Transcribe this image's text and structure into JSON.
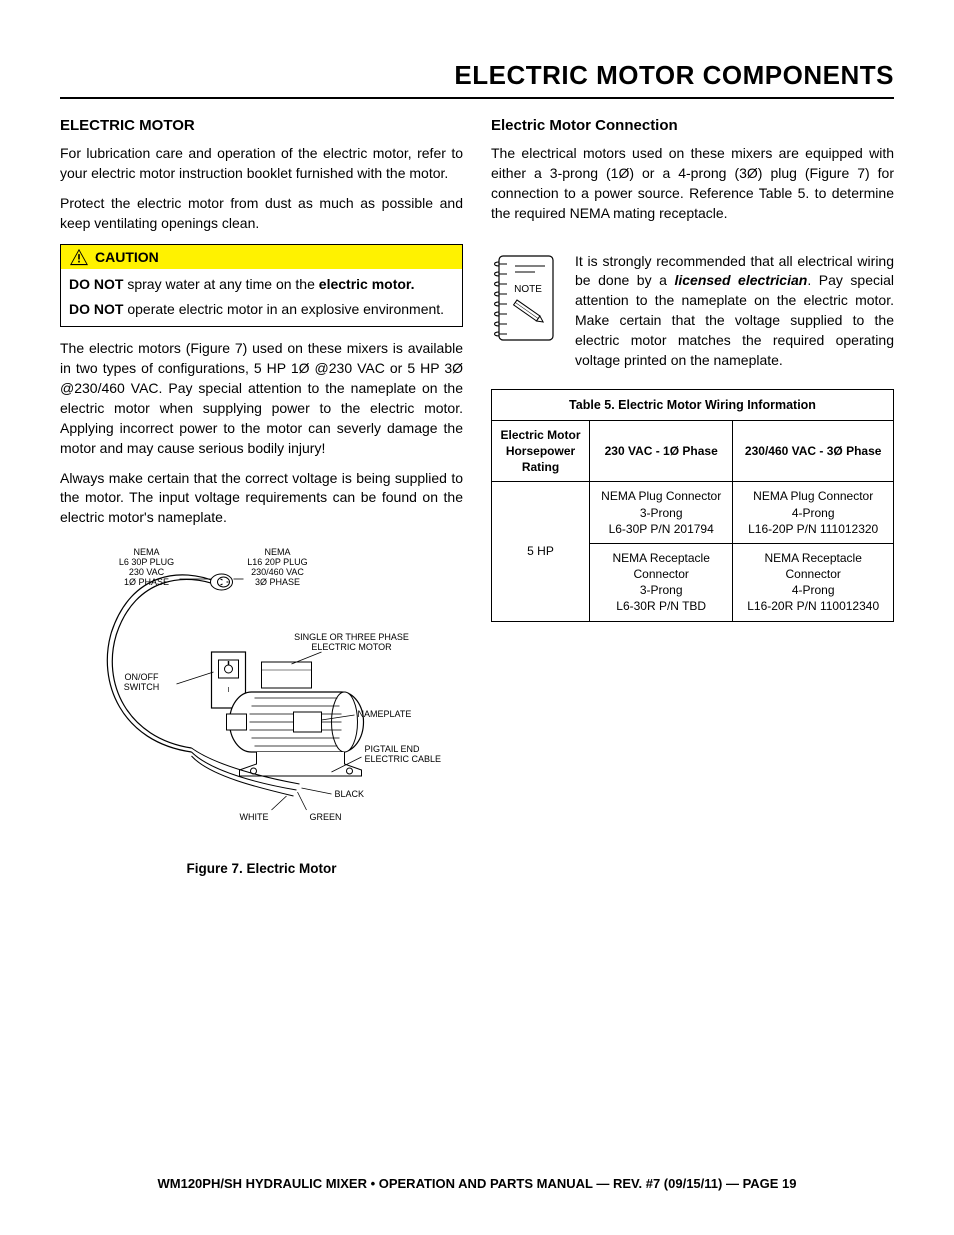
{
  "page": {
    "title": "ELECTRIC MOTOR COMPONENTS",
    "footer": "WM120PH/SH HYDRAULIC MIXER • OPERATION AND PARTS MANUAL — REV. #7 (09/15/11) — PAGE 19"
  },
  "left": {
    "heading": "ELECTRIC MOTOR",
    "p1": "For lubrication care and operation of the electric motor, refer to your electric motor instruction booklet furnished with the motor.",
    "p2": "Protect the electric motor from dust as much as possible and keep ventilating openings clean.",
    "caution": {
      "label": "CAUTION",
      "line1a": "DO NOT",
      "line1b": " spray water at any time on the ",
      "line1c": "electric motor.",
      "line2a": "DO NOT",
      "line2b": " operate electric motor in an explosive environment."
    },
    "p3": "The electric motors (Figure 7) used on these mixers is available in two types of configurations, 5 HP 1Ø @230 VAC or 5 HP 3Ø @230/460 VAC.  Pay special attention to the nameplate on the electric motor when supplying power to the electric motor. Applying incorrect power to the motor can severly damage the motor and may cause serious bodily injury!",
    "p4": "Always make certain that the correct voltage is being supplied to the motor. The input voltage requirements can be found on the electric motor's nameplate.",
    "figure": {
      "caption": "Figure 7.  Electric Motor",
      "labels": {
        "plug1a": "NEMA",
        "plug1b": "L6 30P PLUG",
        "plug1c": "230 VAC",
        "plug1d": "1Ø PHASE",
        "plug2a": "NEMA",
        "plug2b": "L16 20P PLUG",
        "plug2c": "230/460 VAC",
        "plug2d": "3Ø PHASE",
        "motor1": "SINGLE OR THREE PHASE",
        "motor2": "ELECTRIC MOTOR",
        "switch1": "ON/OFF",
        "switch2": "SWITCH",
        "nameplate": "NAMEPLATE",
        "pigtail1": "PIGTAIL END",
        "pigtail2": "ELECTRIC CABLE",
        "black": "BLACK",
        "white": "WHITE",
        "green": "GREEN"
      }
    }
  },
  "right": {
    "heading": "Electric Motor Connection",
    "p1": "The electrical motors used on these mixers are equipped with either a 3-prong (1Ø) or a 4-prong (3Ø) plug (Figure 7) for connection to a power source. Reference Table 5. to determine the required NEMA mating receptacle.",
    "note": {
      "label": "NOTE",
      "t1": "It is strongly recommended that all electrical wiring be done by a ",
      "t2": "licensed electrician",
      "t3": ". Pay special attention to the nameplate on the electric motor. Make certain that the voltage supplied to the electric motor matches the required operating voltage printed on the nameplate."
    },
    "table": {
      "caption": "Table 5. Electric Motor Wiring Information",
      "col1": "Electric Motor Horsepower Rating",
      "col2": "230 VAC - 1Ø Phase",
      "col3": "230/460 VAC - 3Ø Phase",
      "hp": "5 HP",
      "r1c2": "NEMA Plug Connector\n3-Prong\nL6-30P P/N 201794",
      "r1c3": "NEMA Plug Connector\n4-Prong\nL16-20P P/N 111012320",
      "r2c2": "NEMA Receptacle\nConnector\n3-Prong\nL6-30R P/N TBD",
      "r2c3": "NEMA Receptacle\nConnector\n4-Prong\nL16-20R P/N 110012340"
    }
  },
  "colors": {
    "caution_bg": "#fff200",
    "text": "#000000",
    "bg": "#ffffff"
  }
}
